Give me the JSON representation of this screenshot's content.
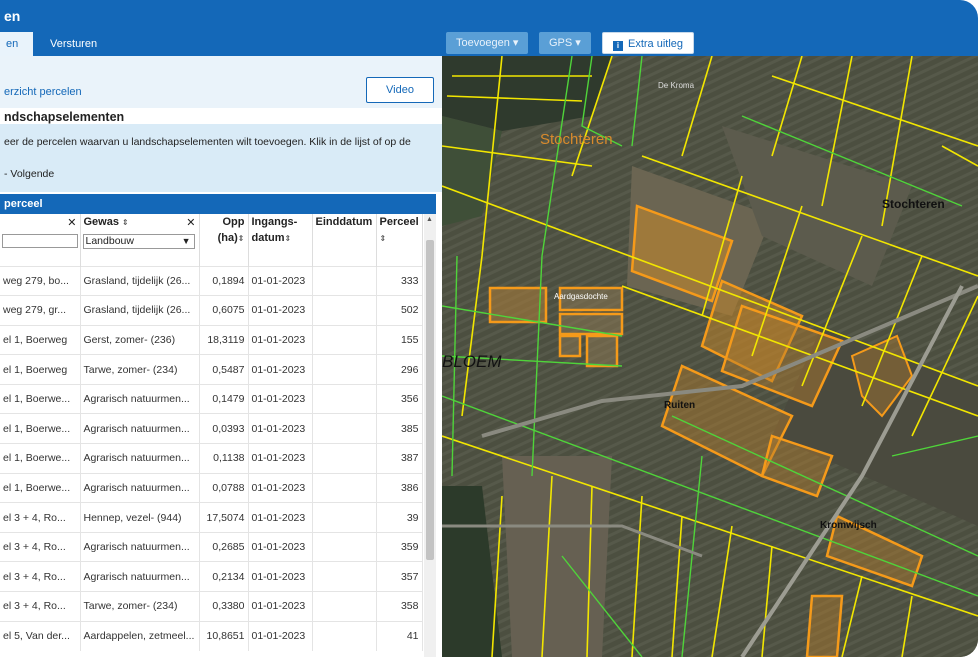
{
  "app": {
    "title": "en"
  },
  "tabs": [
    {
      "label": "en"
    },
    {
      "label": "Versturen"
    }
  ],
  "toolbar": {
    "toevoegen_label": "Toevoegen ▾",
    "gps_label": "GPS ▾",
    "extra_uitleg_label": "Extra uitleg",
    "info_icon": "i"
  },
  "nav": {
    "back_link": "erzicht percelen",
    "video_label": "Video"
  },
  "section": {
    "title": "ndschapselementen",
    "instruction": "eer de percelen waarvan u landschapselementen wilt toevoegen. Klik in de lijst of op de",
    "next": "- Volgende"
  },
  "table": {
    "title": "perceel",
    "headers": {
      "address": "",
      "crop": "Gewas",
      "area_top": "Opp",
      "area_bottom": "(ha)",
      "start_top": "Ingangs-",
      "start_bottom": "datum",
      "end": "Einddatum",
      "parcel": "Perceel"
    },
    "crop_filter": "Landbouw",
    "clear_icon": "✕",
    "sort_icon": "⇕",
    "rows": [
      {
        "address": "weg 279, bo...",
        "crop": "Grasland, tijdelijk (26...",
        "area": "0,1894",
        "start": "01-01-2023",
        "end": "",
        "parcel": "333"
      },
      {
        "address": "weg 279, gr...",
        "crop": "Grasland, tijdelijk (26...",
        "area": "0,6075",
        "start": "01-01-2023",
        "end": "",
        "parcel": "502"
      },
      {
        "address": "el 1, Boerweg",
        "crop": "Gerst, zomer- (236)",
        "area": "18,3119",
        "start": "01-01-2023",
        "end": "",
        "parcel": "155"
      },
      {
        "address": "el 1, Boerweg",
        "crop": "Tarwe, zomer- (234)",
        "area": "0,5487",
        "start": "01-01-2023",
        "end": "",
        "parcel": "296"
      },
      {
        "address": "el 1, Boerwe...",
        "crop": "Agrarisch natuurmen...",
        "area": "0,1479",
        "start": "01-01-2023",
        "end": "",
        "parcel": "356"
      },
      {
        "address": "el 1, Boerwe...",
        "crop": "Agrarisch natuurmen...",
        "area": "0,0393",
        "start": "01-01-2023",
        "end": "",
        "parcel": "385"
      },
      {
        "address": "el 1, Boerwe...",
        "crop": "Agrarisch natuurmen...",
        "area": "0,1138",
        "start": "01-01-2023",
        "end": "",
        "parcel": "387"
      },
      {
        "address": "el 1, Boerwe...",
        "crop": "Agrarisch natuurmen...",
        "area": "0,0788",
        "start": "01-01-2023",
        "end": "",
        "parcel": "386"
      },
      {
        "address": "el 3 + 4, Ro...",
        "crop": "Hennep, vezel- (944)",
        "area": "17,5074",
        "start": "01-01-2023",
        "end": "",
        "parcel": "39"
      },
      {
        "address": "el 3 + 4, Ro...",
        "crop": "Agrarisch natuurmen...",
        "area": "0,2685",
        "start": "01-01-2023",
        "end": "",
        "parcel": "359"
      },
      {
        "address": "el 3 + 4, Ro...",
        "crop": "Agrarisch natuurmen...",
        "area": "0,2134",
        "start": "01-01-2023",
        "end": "",
        "parcel": "357"
      },
      {
        "address": "el 3 + 4, Ro...",
        "crop": "Tarwe, zomer- (234)",
        "area": "0,3380",
        "start": "01-01-2023",
        "end": "",
        "parcel": "358"
      },
      {
        "address": "el 5, Van der...",
        "crop": "Aardappelen, zetmeel...",
        "area": "10,8651",
        "start": "01-01-2023",
        "end": "",
        "parcel": "41"
      }
    ]
  },
  "map": {
    "labels": {
      "stochteren_center": "Stochteren",
      "stochteren_right": "Stochteren",
      "bloem": "BLOEM",
      "aardgasdochte": "Aardgasdochte",
      "ruiten": "Ruiten",
      "kromwijk": "Kromwijsch",
      "de_kroma": "De Kroma"
    },
    "colors": {
      "parcel_outline": "#f2e600",
      "selected_parcel": "#f59a1a",
      "line_green": "#4fd43a",
      "field_dark": "#3d3f33"
    }
  }
}
